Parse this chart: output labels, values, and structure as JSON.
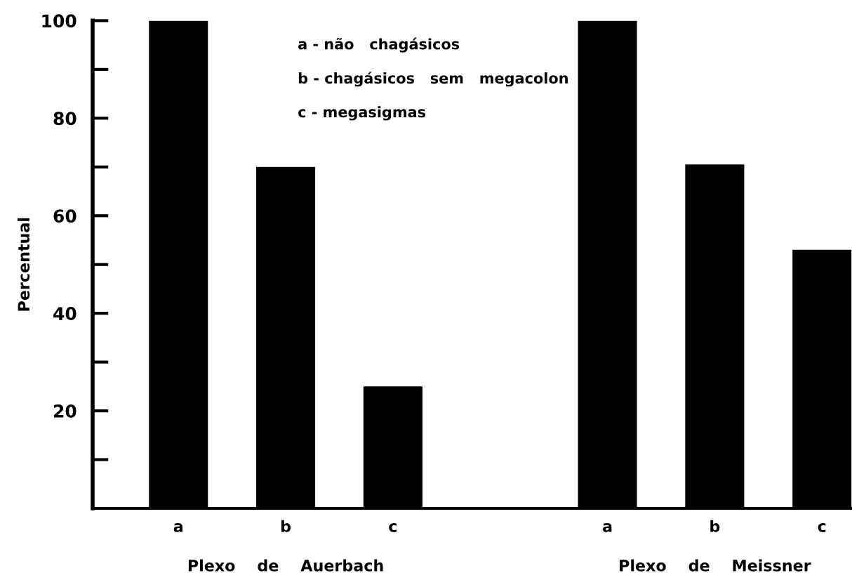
{
  "chart_data": {
    "type": "bar",
    "categories": [
      "a",
      "b",
      "c",
      null,
      "a",
      "b",
      "c"
    ],
    "values": [
      100,
      70,
      25,
      null,
      100,
      70.5,
      53
    ],
    "color": "#000000",
    "ylabel": "Percentual",
    "ylim": [
      0,
      100
    ],
    "yticks": [
      {
        "value": 10,
        "label": null
      },
      20,
      {
        "value": 30,
        "label": null
      },
      40,
      {
        "value": 50,
        "label": null
      },
      60,
      {
        "value": 70,
        "label": null
      },
      80,
      {
        "value": 90,
        "label": null
      },
      100
    ],
    "annotations": [
      "a - não   chagásicos",
      "b - chagásicos   sem   megacolon",
      "c - megasigmas",
      "Plexo    de    Auerbach",
      "Plexo    de    Meissner"
    ],
    "grid": false,
    "legend": false
  }
}
